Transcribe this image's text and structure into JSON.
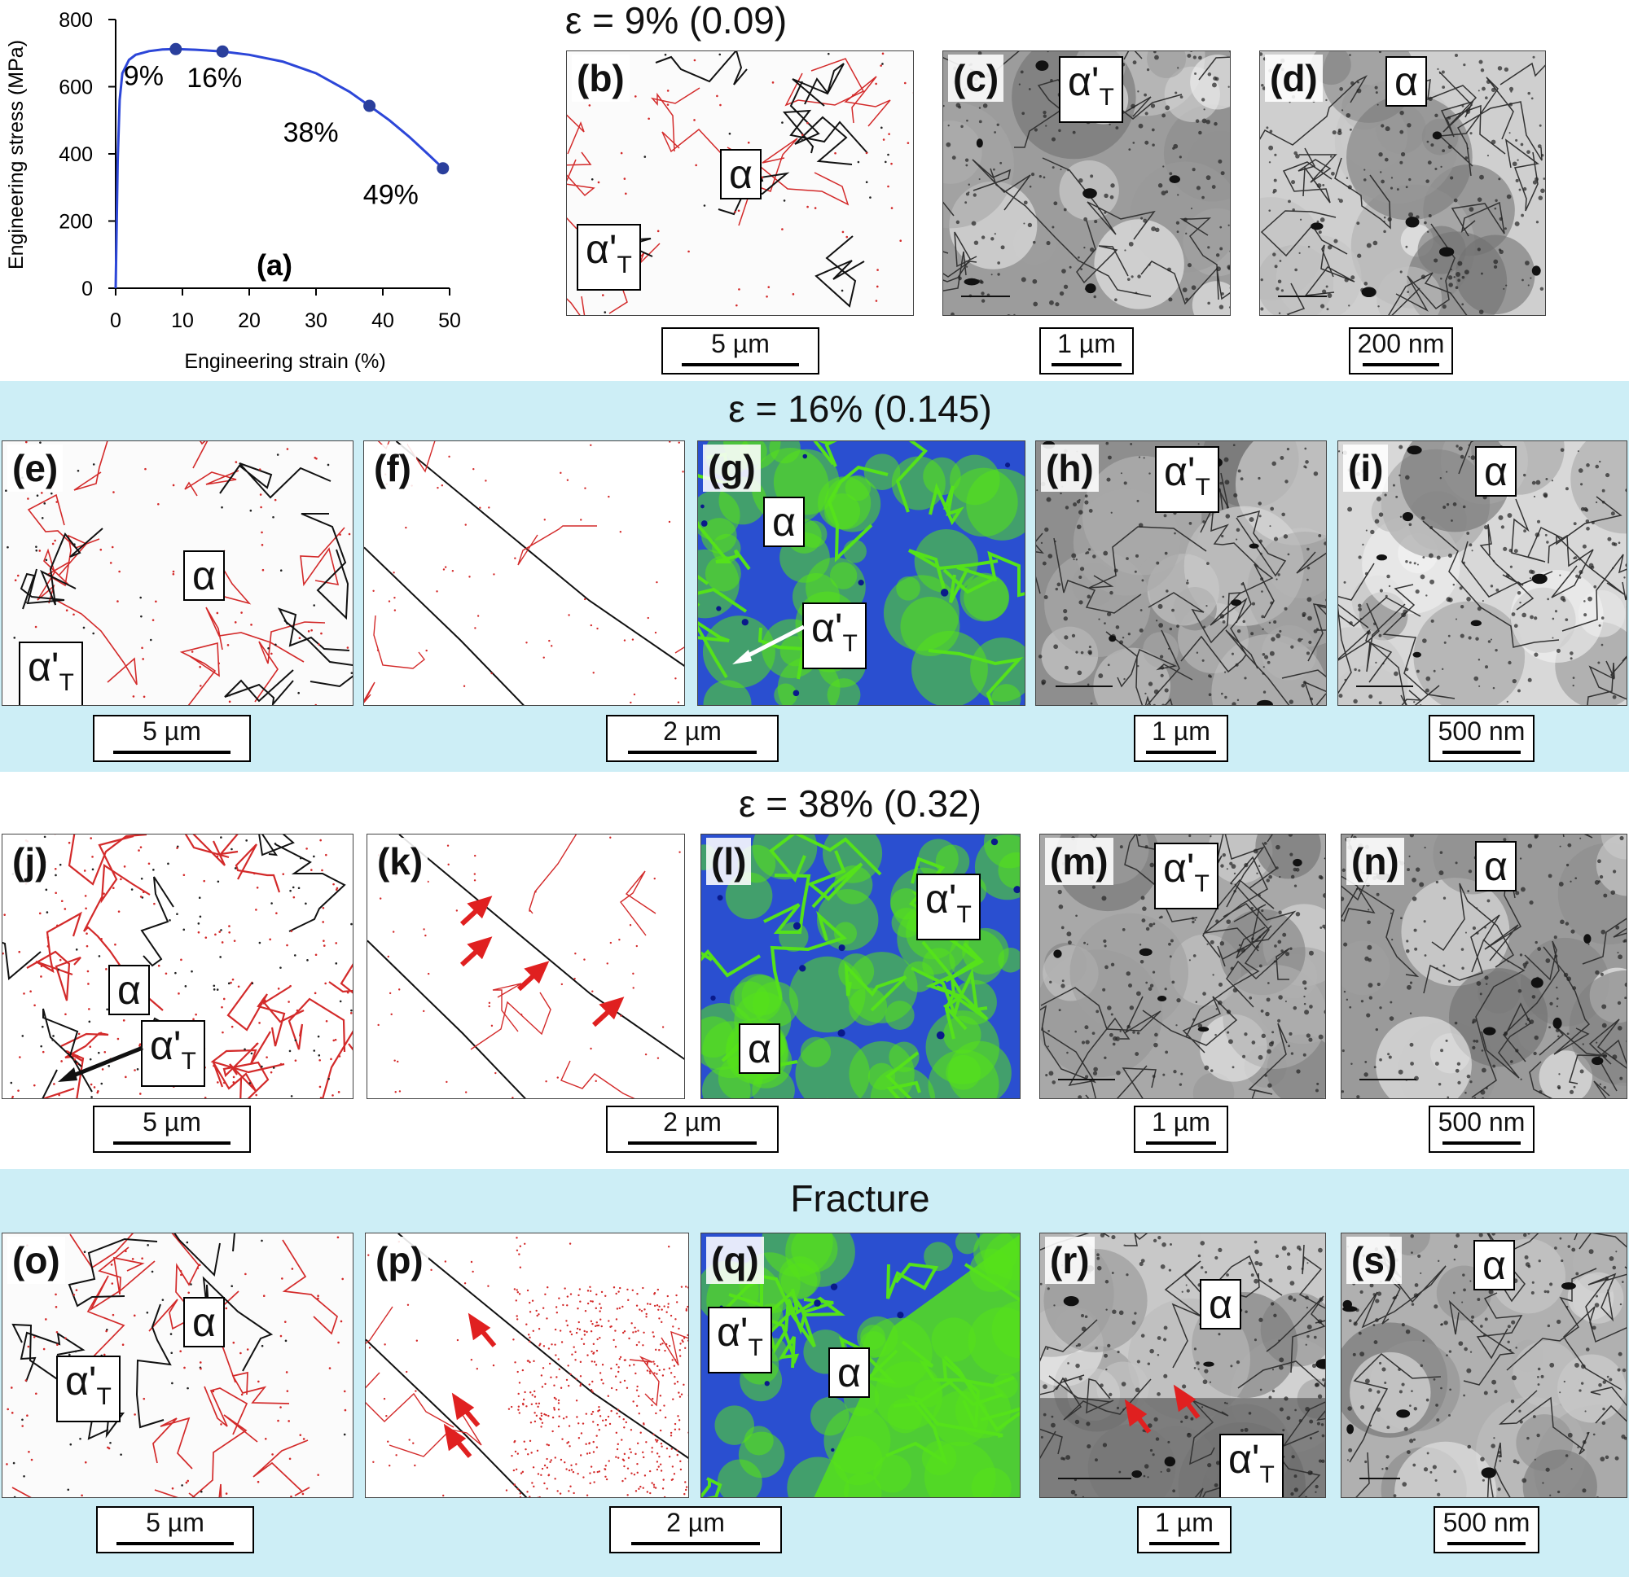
{
  "chart_data": {
    "type": "line",
    "panel_label": "(a)",
    "xlabel": "Engineering strain (%)",
    "ylabel": "Engineering stress (MPa)",
    "xlim": [
      0,
      50
    ],
    "ylim": [
      0,
      800
    ],
    "xticks": [
      "0",
      "10",
      "20",
      "30",
      "40",
      "50"
    ],
    "yticks": [
      "0",
      "200",
      "400",
      "600",
      "800"
    ],
    "series": [
      {
        "x": [
          0,
          0.3,
          0.6,
          1.0,
          2.0,
          3.0,
          5.0,
          7.0,
          9.0,
          12.0,
          16.0,
          20.0,
          25.0,
          30.0,
          35.0,
          38.0,
          41.0,
          44.0,
          47.0,
          49.0
        ],
        "y": [
          0,
          380,
          560,
          640,
          680,
          695,
          706,
          711,
          712,
          710,
          705,
          695,
          675,
          640,
          585,
          543,
          500,
          450,
          395,
          357
        ]
      }
    ],
    "markers": [
      {
        "x": 9,
        "y": 712,
        "label": "9%"
      },
      {
        "x": 16,
        "y": 705,
        "label": "16%"
      },
      {
        "x": 38,
        "y": 543,
        "label": "38%"
      },
      {
        "x": 49,
        "y": 357,
        "label": "49%"
      }
    ],
    "line_color": "#2c46d8",
    "marker_color": "#2a3f9c"
  },
  "rows": {
    "r1": "ε = 9% (0.09)",
    "r2": "ε = 16% (0.145)",
    "r3": "ε = 38% (0.32)",
    "r4": "Fracture"
  },
  "phases": {
    "alpha": "α",
    "alpha_prime": "α'",
    "sub_T": "T"
  },
  "panels": {
    "b": "(b)",
    "c": "(c)",
    "d": "(d)",
    "e": "(e)",
    "f": "(f)",
    "g": "(g)",
    "h": "(h)",
    "i": "(i)",
    "j": "(j)",
    "k": "(k)",
    "l": "(l)",
    "m": "(m)",
    "n": "(n)",
    "o": "(o)",
    "p": "(p)",
    "q": "(q)",
    "r": "(r)",
    "s": "(s)"
  },
  "scales": {
    "um5": "5 µm",
    "um2": "2 µm",
    "um1": "1 µm",
    "nm200": "200 nm",
    "nm500": "500 nm"
  },
  "colors": {
    "band": "#cdeef6",
    "kam_green": "#55e21a",
    "kam_blue": "#2a4fd0",
    "boundary_red": "#d32a2a",
    "arrow_red": "#e02020"
  }
}
